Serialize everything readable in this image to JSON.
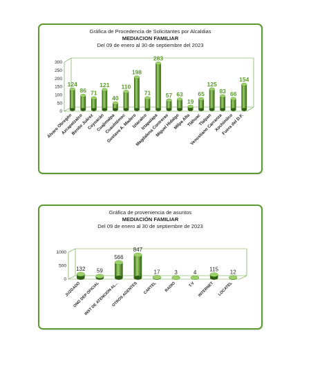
{
  "colors": {
    "border": "#5a9a2e",
    "bar_light": "#9ed06a",
    "bar_mid": "#4f8f24",
    "bar_dark": "#2f5f12",
    "label_green": "#5a9a2e"
  },
  "chart_data": [
    {
      "type": "bar",
      "title": "Gráfica de Procedencia de Solicitantes por Alcaldias",
      "subtitle": "MEDIACION FAMILIAR",
      "period": "Del  09 de enero  al  30 de septiembre del  2023",
      "categories": [
        "Álvaro Obregón",
        "Azcapotzalco",
        "Benito Juárez",
        "Coyoacán",
        "Cuajimalpa",
        "Cuauhtémoc",
        "Gustavo A. Madero",
        "Iztacalco",
        "Iztapalapa",
        "Magdalena Contreras",
        "Miguel Hidalgo",
        "Milpa Alta",
        "Tláhuac",
        "Tlalpan",
        "Venustiano Carranza",
        "Xochimilco",
        "Fuera del D.F."
      ],
      "values": [
        124,
        86,
        71,
        121,
        40,
        110,
        198,
        71,
        283,
        57,
        63,
        19,
        65,
        125,
        83,
        66,
        154
      ],
      "ylim": [
        0,
        300
      ],
      "yticks": [
        "0",
        "50",
        "100",
        "150",
        "200",
        "250",
        "300"
      ],
      "grid": false,
      "style": "3d-cylinder"
    },
    {
      "type": "bar",
      "title": "Gráfica de proveniencia de asuntos",
      "subtitle": "MEDIACIÓN FAMILIAR",
      "period": "Del  09 de enero  al  30 de septiembre de  2023",
      "categories": [
        "JUZGADO",
        "ONG DEP OFICIAL",
        "INST DE ATENCION AL...",
        "OTROS AGENTES",
        "CARTEL",
        "RADIO",
        "T.V",
        "INTERNET",
        "LOCATEL"
      ],
      "values": [
        132,
        59,
        566,
        847,
        17,
        3,
        4,
        115,
        12
      ],
      "ylim": [
        0,
        1000
      ],
      "yticks": [
        "0",
        "500",
        "1000"
      ],
      "grid": false,
      "style": "3d-cylinder"
    }
  ]
}
